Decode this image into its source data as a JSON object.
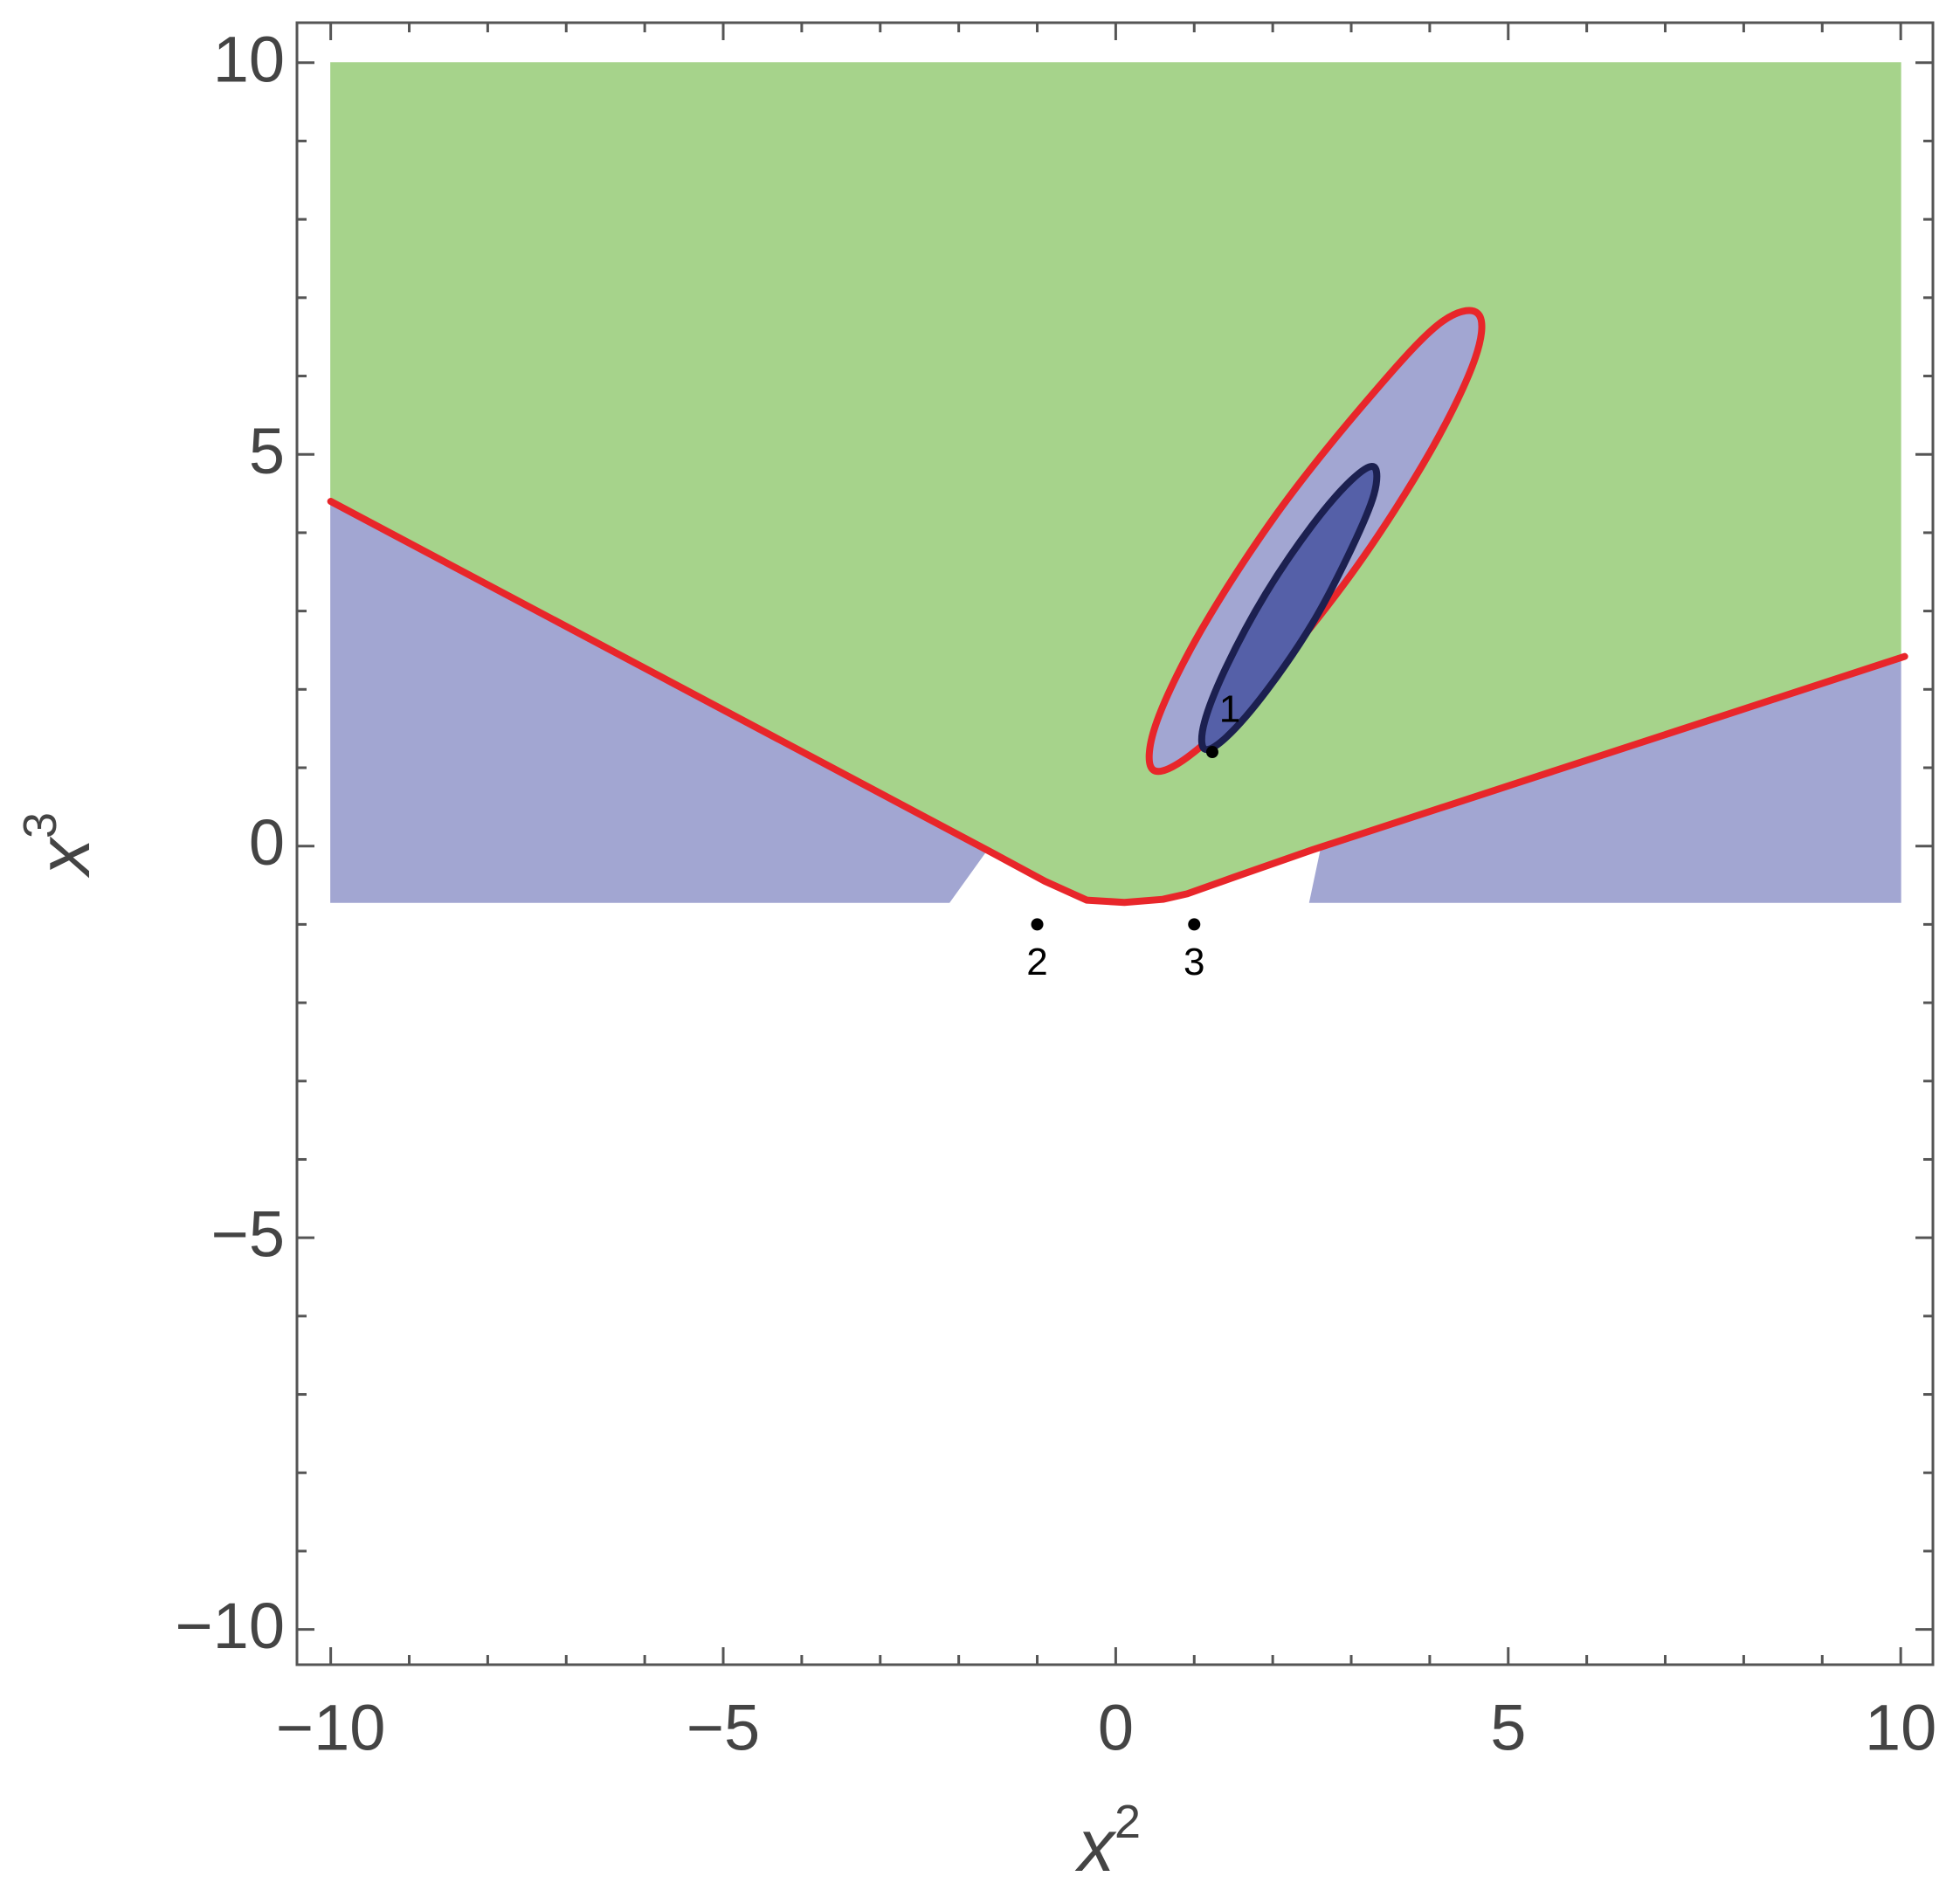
{
  "chart_data": {
    "type": "region",
    "xlabel": {
      "base": "x",
      "sup": "2"
    },
    "ylabel": {
      "base": "x",
      "sup": "3"
    },
    "xlim": [
      -10.43,
      10.41
    ],
    "ylim": [
      -10.45,
      10.51
    ],
    "xticks": [
      {
        "value": -10,
        "label": "−10"
      },
      {
        "value": -5,
        "label": "−5"
      },
      0,
      5,
      10
    ],
    "yticks": [
      {
        "value": -10,
        "label": "−10"
      },
      {
        "value": -5,
        "label": "−5"
      },
      0,
      5,
      10
    ],
    "xminor": [
      -9,
      -8,
      -7,
      -6,
      -4,
      -3,
      -2,
      -1,
      1,
      2,
      3,
      4,
      6,
      7,
      8,
      9
    ],
    "yminor": [
      -9,
      -8,
      -7,
      -6,
      -4,
      -3,
      -2,
      -1,
      1,
      2,
      3,
      4,
      6,
      7,
      8,
      9
    ],
    "regions": [
      {
        "color": "#a2a6d2",
        "x": [
          -10,
          -1.64,
          -2.12,
          -10
        ],
        "y": [
          4.4,
          -0.05,
          -0.72,
          -0.72
        ]
      },
      {
        "color": "#a2a6d2",
        "x": [
          10,
          2.62,
          2.47,
          10
        ],
        "y": [
          2.4,
          -0.01,
          -0.72,
          -0.72
        ]
      },
      {
        "color": "#a6d38b",
        "x": [
          -10,
          10,
          10,
          2.5,
          1.5,
          0.91,
          0.6,
          0.11,
          -0.37,
          -0.9,
          -1.64,
          -10
        ],
        "y": [
          10,
          10,
          2.4,
          -0.05,
          -0.4,
          -0.61,
          -0.68,
          -0.72,
          -0.69,
          -0.45,
          -0.05,
          4.4
        ]
      }
    ],
    "ellipses": [
      {
        "color": "#a2a6d2",
        "stroke": "#e8262a",
        "x": [
          4.61,
          4.58,
          4.01,
          3.05,
          1.94,
          1.0,
          0.48,
          0.51,
          1.08,
          2.05,
          3.16,
          4.1
        ],
        "y": [
          6.8,
          6.23,
          5.04,
          3.54,
          2.14,
          1.2,
          0.97,
          1.55,
          2.74,
          4.24,
          5.64,
          6.65
        ]
      },
      {
        "color": "#5560a8",
        "stroke": "#1c2050",
        "x": [
          3.29,
          3.29,
          3.0,
          2.51,
          1.92,
          1.41,
          1.13,
          1.13,
          1.41,
          1.91,
          2.5,
          3.0
        ],
        "y": [
          4.84,
          4.49,
          3.79,
          2.85,
          1.98,
          1.39,
          1.24,
          1.58,
          2.29,
          3.22,
          4.09,
          4.67
        ]
      }
    ],
    "curve": {
      "color": "#e8262a",
      "x": [
        -10,
        -1.64,
        -0.9,
        -0.37,
        0.11,
        0.6,
        0.91,
        1.5,
        2.5,
        10.05
      ],
      "y": [
        4.4,
        -0.05,
        -0.45,
        -0.69,
        -0.72,
        -0.68,
        -0.61,
        -0.4,
        -0.05,
        2.42
      ]
    },
    "points": {
      "color": "#000000",
      "x": [
        1.23,
        -1,
        1
      ],
      "y": [
        1.2,
        -1,
        -1
      ],
      "labels": [
        "1",
        "2",
        "3"
      ]
    }
  }
}
